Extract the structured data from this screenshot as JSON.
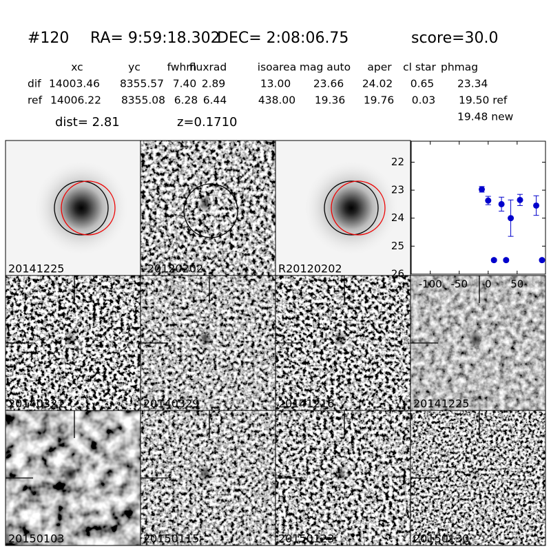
{
  "header": {
    "id": "#120",
    "ra": "RA= 9:59:18.302",
    "dec": "DEC= 2:08:06.75",
    "score": "score=30.0"
  },
  "table": {
    "columns": [
      "xc",
      "yc",
      "fwhm",
      "fluxrad",
      "isoarea",
      "mag auto",
      "aper",
      "cl star",
      "phmag"
    ],
    "rows": [
      {
        "label": "dif",
        "cells": [
          "14003.46",
          "8355.57",
          "7.40",
          "2.89",
          "13.00",
          "23.66",
          "24.02",
          "0.65",
          "23.34"
        ]
      },
      {
        "label": "ref",
        "cells": [
          "14006.22",
          "8355.08",
          "6.28",
          "6.44",
          "438.00",
          "19.36",
          "19.76",
          "0.03",
          "19.50 ref"
        ]
      }
    ],
    "extra": "19.48 new"
  },
  "dist": "dist=  2.81",
  "z": "z=0.1710",
  "panels": [
    {
      "label": "20141225"
    },
    {
      "label": "-20120202"
    },
    {
      "label": "R20120202"
    },
    {
      "label": "20140321"
    },
    {
      "label": "20140329"
    },
    {
      "label": "20141216"
    },
    {
      "label": "20141225",
      "label_color": "#ff0000"
    },
    {
      "label": "20150103"
    },
    {
      "label": "20150115"
    },
    {
      "label": "20150123"
    },
    {
      "label": "20150130"
    }
  ],
  "chart_data": {
    "type": "scatter",
    "color": "#0000cc",
    "x": [
      -11,
      0,
      10,
      23,
      31,
      39,
      55,
      83,
      93
    ],
    "values": [
      22.97,
      23.37,
      25.5,
      23.5,
      25.5,
      24.0,
      23.35,
      23.55,
      25.5
    ],
    "errors": [
      0.1,
      0.15,
      0.05,
      0.25,
      0.05,
      0.65,
      0.2,
      0.35,
      0.05
    ],
    "xlim": [
      -133,
      99
    ],
    "ylim": [
      26,
      21.25
    ],
    "xticks": [
      -100,
      -50,
      0,
      50
    ],
    "yticks": [
      22,
      23,
      24,
      25,
      26
    ]
  }
}
